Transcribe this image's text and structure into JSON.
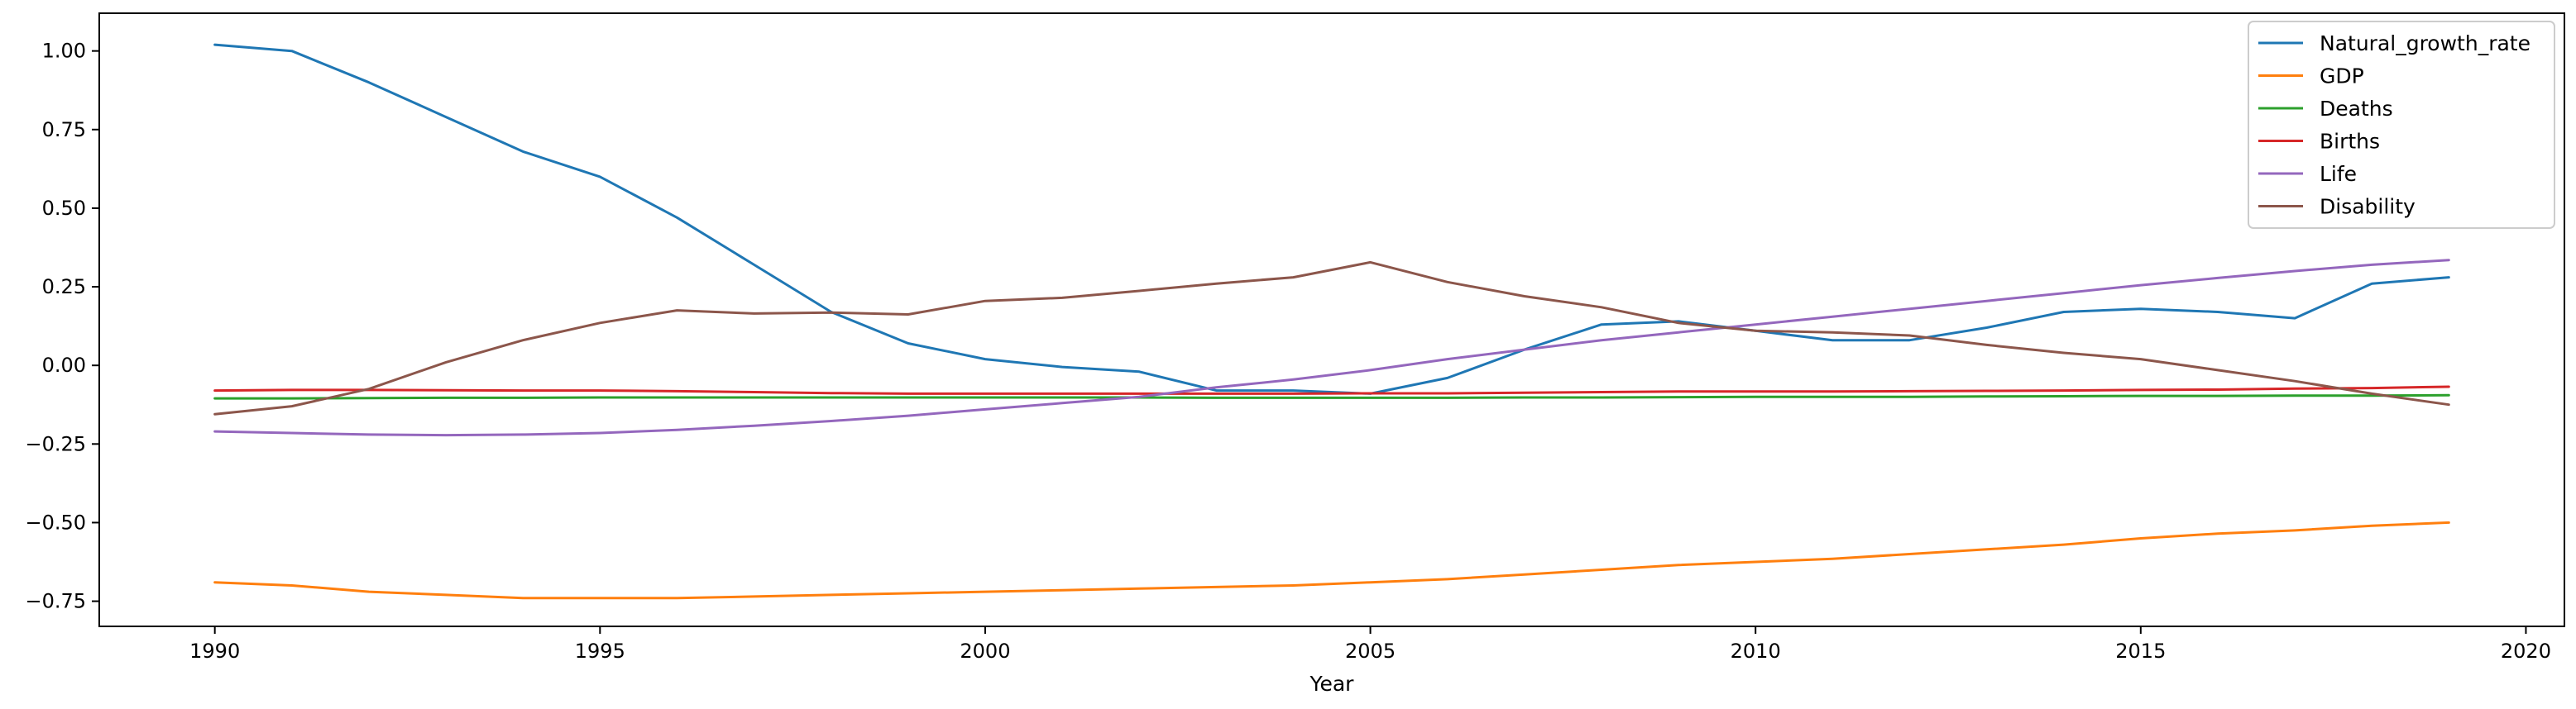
{
  "chart_data": {
    "type": "line",
    "title": "",
    "xlabel": "Year",
    "ylabel": "",
    "xlim": [
      1988.5,
      2020.5
    ],
    "ylim": [
      -0.83,
      1.12
    ],
    "xticks": [
      1990,
      1995,
      2000,
      2005,
      2010,
      2015,
      2020
    ],
    "yticks": [
      1.0,
      0.75,
      0.5,
      0.25,
      0.0,
      -0.25,
      -0.5,
      -0.75
    ],
    "ytick_labels": [
      "1.00",
      "0.75",
      "0.50",
      "0.25",
      "0.00",
      "−0.25",
      "−0.50",
      "−0.75"
    ],
    "grid": false,
    "legend_position": "top-right",
    "x": [
      1990,
      1991,
      1992,
      1993,
      1994,
      1995,
      1996,
      1997,
      1998,
      1999,
      2000,
      2001,
      2002,
      2003,
      2004,
      2005,
      2006,
      2007,
      2008,
      2009,
      2010,
      2011,
      2012,
      2013,
      2014,
      2015,
      2016,
      2017,
      2018,
      2019
    ],
    "series": [
      {
        "name": "Natural_growth_rate",
        "color": "#1f77b4",
        "values": [
          1.02,
          1.0,
          0.9,
          0.79,
          0.68,
          0.6,
          0.47,
          0.32,
          0.17,
          0.07,
          0.02,
          -0.005,
          -0.02,
          -0.08,
          -0.08,
          -0.09,
          -0.04,
          0.05,
          0.13,
          0.14,
          0.11,
          0.08,
          0.08,
          0.12,
          0.17,
          0.18,
          0.17,
          0.15,
          0.26,
          0.28
        ]
      },
      {
        "name": "GDP",
        "color": "#ff7f0e",
        "values": [
          -0.69,
          -0.7,
          -0.72,
          -0.73,
          -0.74,
          -0.74,
          -0.74,
          -0.735,
          -0.73,
          -0.725,
          -0.72,
          -0.715,
          -0.71,
          -0.705,
          -0.7,
          -0.69,
          -0.68,
          -0.665,
          -0.65,
          -0.635,
          -0.625,
          -0.615,
          -0.6,
          -0.585,
          -0.57,
          -0.55,
          -0.535,
          -0.525,
          -0.51,
          -0.5
        ]
      },
      {
        "name": "Deaths",
        "color": "#2ca02c",
        "values": [
          -0.105,
          -0.105,
          -0.104,
          -0.103,
          -0.103,
          -0.102,
          -0.102,
          -0.102,
          -0.102,
          -0.102,
          -0.102,
          -0.102,
          -0.102,
          -0.103,
          -0.103,
          -0.103,
          -0.103,
          -0.102,
          -0.102,
          -0.101,
          -0.1,
          -0.1,
          -0.1,
          -0.099,
          -0.098,
          -0.097,
          -0.097,
          -0.096,
          -0.096,
          -0.095
        ]
      },
      {
        "name": "Births",
        "color": "#d62728",
        "values": [
          -0.08,
          -0.078,
          -0.078,
          -0.079,
          -0.08,
          -0.08,
          -0.082,
          -0.085,
          -0.088,
          -0.09,
          -0.09,
          -0.09,
          -0.09,
          -0.09,
          -0.09,
          -0.089,
          -0.089,
          -0.087,
          -0.085,
          -0.083,
          -0.083,
          -0.083,
          -0.082,
          -0.081,
          -0.08,
          -0.078,
          -0.077,
          -0.074,
          -0.072,
          -0.068
        ]
      },
      {
        "name": "Life",
        "color": "#9467bd",
        "values": [
          -0.21,
          -0.215,
          -0.22,
          -0.222,
          -0.22,
          -0.215,
          -0.205,
          -0.192,
          -0.177,
          -0.16,
          -0.14,
          -0.12,
          -0.1,
          -0.07,
          -0.045,
          -0.015,
          0.02,
          0.05,
          0.08,
          0.105,
          0.13,
          0.155,
          0.18,
          0.205,
          0.23,
          0.255,
          0.278,
          0.3,
          0.32,
          0.335
        ]
      },
      {
        "name": "Disability",
        "color": "#8c564b",
        "values": [
          -0.155,
          -0.13,
          -0.075,
          0.01,
          0.08,
          0.135,
          0.175,
          0.165,
          0.168,
          0.162,
          0.205,
          0.215,
          0.237,
          0.26,
          0.28,
          0.328,
          0.265,
          0.22,
          0.185,
          0.135,
          0.11,
          0.105,
          0.095,
          0.065,
          0.04,
          0.02,
          -0.015,
          -0.05,
          -0.09,
          -0.125
        ]
      }
    ]
  }
}
